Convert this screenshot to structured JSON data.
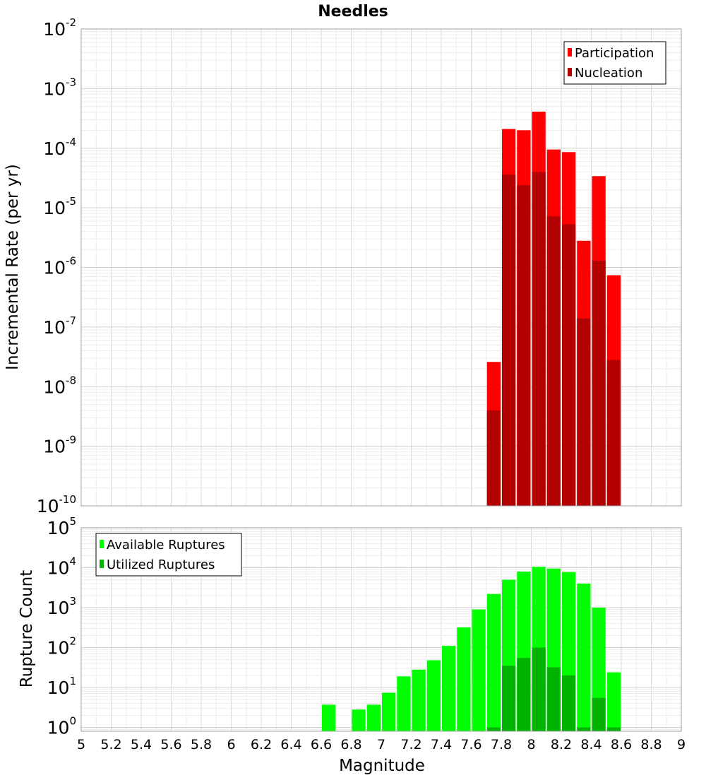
{
  "chart_data": {
    "title": "Needles",
    "xlabel": "Magnitude",
    "xlim": [
      5,
      9
    ],
    "x_ticks": [
      "5",
      "5.2",
      "5.4",
      "5.6",
      "5.8",
      "6",
      "6.2",
      "6.4",
      "6.6",
      "6.8",
      "7",
      "7.2",
      "7.4",
      "7.6",
      "7.8",
      "8",
      "8.2",
      "8.4",
      "8.6",
      "8.8",
      "9"
    ],
    "bin_width": 0.1,
    "grid": true,
    "panels": [
      {
        "type": "bar",
        "ylabel": "Incremental Rate (per yr)",
        "yscale": "log",
        "ylim": [
          1e-10,
          0.01
        ],
        "y_tick_labels": [
          {
            "base": "10",
            "exp": "-2"
          },
          {
            "base": "10",
            "exp": "-3"
          },
          {
            "base": "10",
            "exp": "-4"
          },
          {
            "base": "10",
            "exp": "-5"
          },
          {
            "base": "10",
            "exp": "-6"
          },
          {
            "base": "10",
            "exp": "-7"
          },
          {
            "base": "10",
            "exp": "-8"
          },
          {
            "base": "10",
            "exp": "-9"
          },
          {
            "base": "10",
            "exp": "-10"
          }
        ],
        "legend_position": "top-right",
        "x": [
          7.75,
          7.85,
          7.95,
          8.05,
          8.15,
          8.25,
          8.35,
          8.45,
          8.55
        ],
        "series": [
          {
            "name": "Participation",
            "color": "#ff0000",
            "values": [
              2.6e-08,
              0.00021,
              0.0002,
              0.00041,
              9.5e-05,
              8.6e-05,
              2.8e-06,
              3.4e-05,
              7.4e-07
            ]
          },
          {
            "name": "Nucleation",
            "color": "#b30000",
            "values": [
              4e-09,
              3.6e-05,
              2.4e-05,
              4e-05,
              7.2e-06,
              5.3e-06,
              1.4e-07,
              1.3e-06,
              2.8e-08
            ]
          }
        ]
      },
      {
        "type": "bar",
        "ylabel": "Rupture Count",
        "yscale": "log",
        "ylim": [
          0.8,
          100000.0
        ],
        "y_tick_labels": [
          {
            "base": "10",
            "exp": "5"
          },
          {
            "base": "10",
            "exp": "4"
          },
          {
            "base": "10",
            "exp": "3"
          },
          {
            "base": "10",
            "exp": "2"
          },
          {
            "base": "10",
            "exp": "1"
          },
          {
            "base": "10",
            "exp": "0"
          }
        ],
        "legend_position": "top-left",
        "series": [
          {
            "name": "Available Ruptures",
            "color": "#00ff00",
            "x": [
              6.65,
              6.85,
              6.95,
              7.05,
              7.15,
              7.25,
              7.35,
              7.45,
              7.55,
              7.65,
              7.75,
              7.85,
              7.95,
              8.05,
              8.15,
              8.25,
              8.35,
              8.45,
              8.55
            ],
            "values": [
              3.7,
              2.8,
              3.7,
              7.4,
              19,
              28,
              48,
              110,
              320,
              900,
              2200,
              5000,
              8000,
              10500,
              9500,
              7800,
              4000,
              1000,
              24
            ]
          },
          {
            "name": "Utilized Ruptures",
            "color": "#00b300",
            "x": [
              7.75,
              7.85,
              7.95,
              8.05,
              8.15,
              8.25,
              8.35,
              8.45,
              8.55
            ],
            "values": [
              1,
              35,
              55,
              100,
              32,
              20,
              1,
              5.5,
              1
            ]
          }
        ]
      }
    ]
  }
}
